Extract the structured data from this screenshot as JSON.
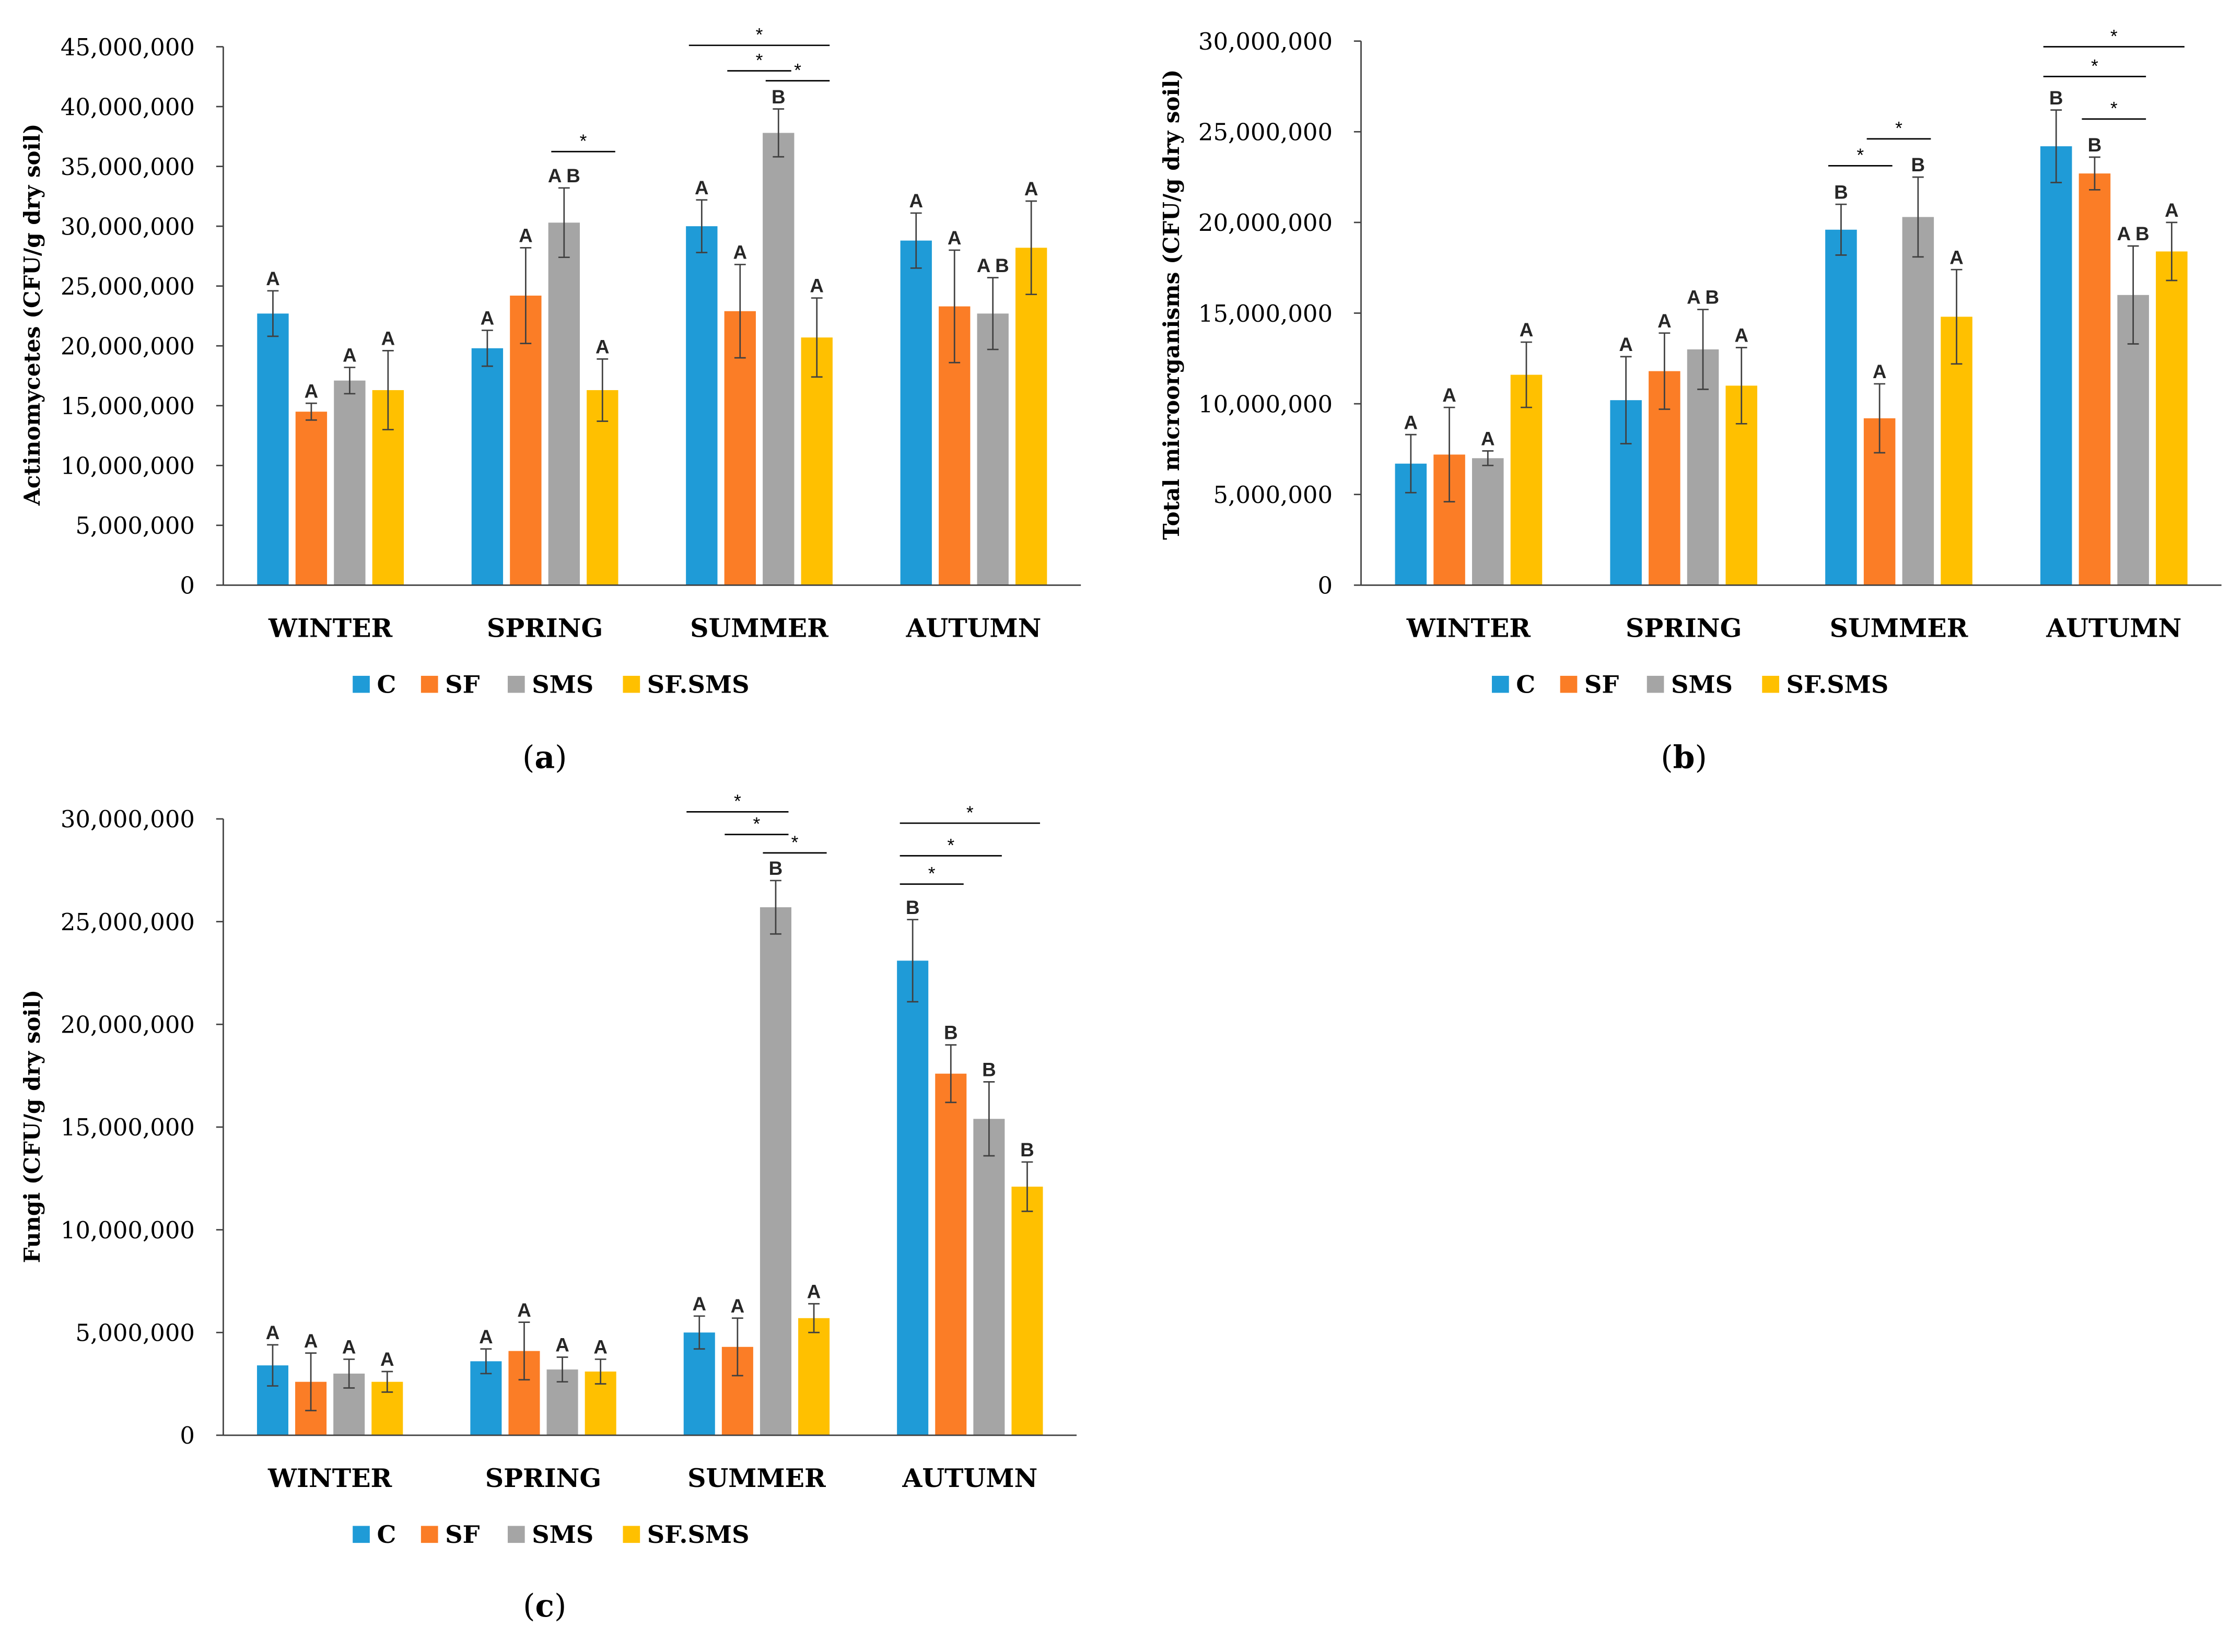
{
  "chart_data": [
    {
      "type": "bar",
      "panel": {
        "open": "(",
        "letter": "a",
        "close": ")"
      },
      "ylabel": "Actinomycetes (CFU/g dry soil)",
      "categories": [
        "WINTER",
        "SPRING",
        "SUMMER",
        "AUTUMN"
      ],
      "ylim": [
        0,
        45000000
      ],
      "yticks": [
        0,
        5000000,
        10000000,
        15000000,
        20000000,
        25000000,
        30000000,
        35000000,
        40000000,
        45000000
      ],
      "ytick_labels": [
        "0",
        "5,000,000",
        "10,000,000",
        "15,000,000",
        "20,000,000",
        "25,000,000",
        "30,000,000",
        "35,000,000",
        "40,000,000",
        "45,000,000"
      ],
      "legend": "bottom",
      "series": [
        {
          "name": "C",
          "color": "#1F9BD7",
          "values": [
            22700000,
            19800000,
            30000000,
            28800000
          ],
          "errors": [
            1900000,
            1500000,
            2200000,
            2300000
          ],
          "letters": [
            "A",
            "A",
            "A",
            "A"
          ]
        },
        {
          "name": "SF",
          "color": "#FB7D26",
          "values": [
            14500000,
            24200000,
            22900000,
            23300000
          ],
          "errors": [
            700000,
            4000000,
            3900000,
            4700000
          ],
          "letters": [
            "A",
            "A",
            "A",
            "A"
          ]
        },
        {
          "name": "SMS",
          "color": "#A5A5A5",
          "values": [
            17100000,
            30300000,
            37800000,
            22700000
          ],
          "errors": [
            1100000,
            2900000,
            2000000,
            3000000
          ],
          "letters": [
            "A",
            "A B",
            "B",
            "A B"
          ]
        },
        {
          "name": "SF.SMS",
          "color": "#FFC000",
          "values": [
            16300000,
            16300000,
            20700000,
            28200000
          ],
          "errors": [
            3300000,
            2600000,
            3300000,
            3900000
          ],
          "letters": [
            "A",
            "A",
            "A",
            "A"
          ]
        }
      ],
      "significance": [
        {
          "category": "SPRING",
          "from": "SMS",
          "to": "SF.SMS",
          "label": "*"
        },
        {
          "category": "SUMMER",
          "from": "C",
          "to": "SF.SMS",
          "label": "*"
        },
        {
          "category": "SUMMER",
          "from": "SF",
          "to": "SMS",
          "label": "*"
        },
        {
          "category": "SUMMER",
          "from": "SMS",
          "to": "SF.SMS",
          "label": "*"
        }
      ]
    },
    {
      "type": "bar",
      "panel": {
        "open": "(",
        "letter": "b",
        "close": ")"
      },
      "ylabel": "Total microorganisms (CFU/g dry soil)",
      "categories": [
        "WINTER",
        "SPRING",
        "SUMMER",
        "AUTUMN"
      ],
      "ylim": [
        0,
        30000000
      ],
      "yticks": [
        0,
        5000000,
        10000000,
        15000000,
        20000000,
        25000000,
        30000000
      ],
      "ytick_labels": [
        "0",
        "5,000,000",
        "10,000,000",
        "15,000,000",
        "20,000,000",
        "25,000,000",
        "30,000,000"
      ],
      "legend": "bottom",
      "series": [
        {
          "name": "C",
          "color": "#1F9BD7",
          "values": [
            6700000,
            10200000,
            19600000,
            24200000
          ],
          "errors": [
            1600000,
            2400000,
            1400000,
            2000000
          ],
          "letters": [
            "A",
            "A",
            "B",
            "B"
          ]
        },
        {
          "name": "SF",
          "color": "#FB7D26",
          "values": [
            7200000,
            11800000,
            9200000,
            22700000
          ],
          "errors": [
            2600000,
            2100000,
            1900000,
            900000
          ],
          "letters": [
            "A",
            "A",
            "A",
            "B"
          ]
        },
        {
          "name": "SMS",
          "color": "#A5A5A5",
          "values": [
            7000000,
            13000000,
            20300000,
            16000000
          ],
          "errors": [
            400000,
            2200000,
            2200000,
            2700000
          ],
          "letters": [
            "A",
            "A B",
            "B",
            "A B"
          ]
        },
        {
          "name": "SF.SMS",
          "color": "#FFC000",
          "values": [
            11600000,
            11000000,
            14800000,
            18400000
          ],
          "errors": [
            1800000,
            2100000,
            2600000,
            1600000
          ],
          "letters": [
            "A",
            "A",
            "A",
            "A"
          ]
        }
      ],
      "significance": [
        {
          "category": "SUMMER",
          "from": "C",
          "to": "SF",
          "label": "*"
        },
        {
          "category": "SUMMER",
          "from": "SF",
          "to": "SMS",
          "label": "*"
        },
        {
          "category": "AUTUMN",
          "from": "C",
          "to": "SF.SMS",
          "label": "*"
        },
        {
          "category": "AUTUMN",
          "from": "C",
          "to": "SMS",
          "label": "*"
        },
        {
          "category": "AUTUMN",
          "from": "SF",
          "to": "SMS",
          "label": "*"
        }
      ]
    },
    {
      "type": "bar",
      "panel": {
        "open": "(",
        "letter": "c",
        "close": ")"
      },
      "ylabel": "Fungi (CFU/g dry soil)",
      "categories": [
        "WINTER",
        "SPRING",
        "SUMMER",
        "AUTUMN"
      ],
      "ylim": [
        0,
        30000000
      ],
      "yticks": [
        0,
        5000000,
        10000000,
        15000000,
        20000000,
        25000000,
        30000000
      ],
      "ytick_labels": [
        "0",
        "5,000,000",
        "10,000,000",
        "15,000,000",
        "20,000,000",
        "25,000,000",
        "30,000,000"
      ],
      "legend": "bottom",
      "series": [
        {
          "name": "C",
          "color": "#1F9BD7",
          "values": [
            3400000,
            3600000,
            5000000,
            23100000
          ],
          "errors": [
            1000000,
            600000,
            800000,
            2000000
          ],
          "letters": [
            "A",
            "A",
            "A",
            "B"
          ]
        },
        {
          "name": "SF",
          "color": "#FB7D26",
          "values": [
            2600000,
            4100000,
            4300000,
            17600000
          ],
          "errors": [
            1400000,
            1400000,
            1400000,
            1400000
          ],
          "letters": [
            "A",
            "A",
            "A",
            "B"
          ]
        },
        {
          "name": "SMS",
          "color": "#A5A5A5",
          "values": [
            3000000,
            3200000,
            25700000,
            15400000
          ],
          "errors": [
            700000,
            600000,
            1300000,
            1800000
          ],
          "letters": [
            "A",
            "A",
            "B",
            "B"
          ]
        },
        {
          "name": "SF.SMS",
          "color": "#FFC000",
          "values": [
            2600000,
            3100000,
            5700000,
            12100000
          ],
          "errors": [
            500000,
            600000,
            700000,
            1200000
          ],
          "letters": [
            "A",
            "A",
            "A",
            "B"
          ]
        }
      ],
      "significance": [
        {
          "category": "SUMMER",
          "from": "C",
          "to": "SMS",
          "label": "*"
        },
        {
          "category": "SUMMER",
          "from": "SF",
          "to": "SMS",
          "label": "*"
        },
        {
          "category": "SUMMER",
          "from": "SMS",
          "to": "SF.SMS",
          "label": "*"
        },
        {
          "category": "AUTUMN",
          "from": "C",
          "to": "SF.SMS",
          "label": "*"
        },
        {
          "category": "AUTUMN",
          "from": "C",
          "to": "SMS",
          "label": "*"
        },
        {
          "category": "AUTUMN",
          "from": "C",
          "to": "SF",
          "label": "*"
        }
      ]
    }
  ]
}
